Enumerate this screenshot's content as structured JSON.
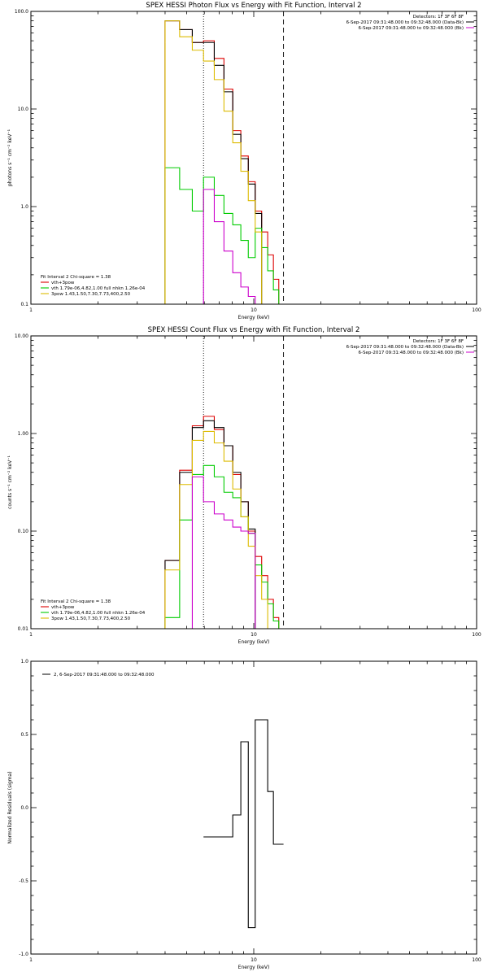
{
  "chart_data": [
    {
      "type": "line",
      "title": "SPEX HESSI Photon Flux vs Energy with Fit Function, Interval 2",
      "xlabel": "Energy (keV)",
      "ylabel": "photons s⁻¹ cm⁻² keV⁻¹",
      "xscale": "log",
      "yscale": "log",
      "xlim": [
        1,
        100
      ],
      "ylim": [
        0.1,
        100
      ],
      "xticks": [
        {
          "v": 1,
          "l": "1"
        },
        {
          "v": 10,
          "l": "10"
        },
        {
          "v": 100,
          "l": "100"
        }
      ],
      "yticks": [
        {
          "v": 0.1,
          "l": "0.1"
        },
        {
          "v": 1,
          "l": "1.0"
        },
        {
          "v": 10,
          "l": "10.0"
        },
        {
          "v": 100,
          "l": "100.0"
        }
      ],
      "vlines": [
        {
          "x": 5.95,
          "style": "dotted"
        },
        {
          "x": 13.6,
          "style": "dashed"
        }
      ],
      "info_lines": [
        {
          "text": "Detectors: 1F 3F 6F 8F",
          "color": ""
        },
        {
          "text": "6-Sep-2017 09:31:48.000 to 09:32:48.000 (Data-Bk)",
          "color": "#000000"
        },
        {
          "text": "6-Sep-2017 09:31:48.000 to 09:32:48.000 (Bk)",
          "color": "#cc00cc"
        }
      ],
      "legend_title": "Fit Interval 2   Chi-square = 1.38",
      "legend": [
        {
          "text": "vth+3pow",
          "color": "#dd0000"
        },
        {
          "text": "vth 1.79e-06,4.82,1.00  full nhkn 1.26e-04",
          "color": "#00cc00"
        },
        {
          "text": "3pow 1.43,1.50,7.30,7.73,400,2.50",
          "color": "#ddbb00"
        }
      ],
      "edges": [
        4.0,
        4.65,
        5.3,
        5.95,
        6.65,
        7.35,
        8.05,
        8.75,
        9.45,
        10.15,
        10.85,
        11.55,
        12.25,
        12.95,
        13.6,
        14.85,
        16.1,
        17.4,
        18.7,
        20.0
      ],
      "series": [
        {
          "name": "vth+3pow",
          "color": "#dd0000",
          "values": [
            80,
            65,
            48,
            50,
            33,
            16,
            6,
            3.3,
            1.8,
            0.9,
            0.55,
            0.32,
            0.18,
            0.1,
            0.1
          ]
        },
        {
          "name": "Data-Bk",
          "color": "#000000",
          "values": [
            80,
            65,
            48,
            48,
            28,
            15,
            5.5,
            3.1,
            1.7,
            0.85,
            null,
            null,
            null,
            null,
            null
          ]
        },
        {
          "name": "vth",
          "color": "#00cc00",
          "values": [
            2.5,
            1.5,
            0.9,
            2.0,
            1.3,
            0.85,
            0.65,
            0.45,
            0.3,
            0.6,
            0.38,
            0.22,
            0.14,
            0.1,
            0.1
          ]
        },
        {
          "name": "3pow",
          "color": "#ddbb00",
          "values": [
            80,
            55,
            40,
            31,
            20,
            9.5,
            4.5,
            2.3,
            1.15,
            0.55,
            0.1,
            null,
            null,
            null,
            null
          ]
        },
        {
          "name": "Bk",
          "color": "#cc00cc",
          "values": [
            null,
            null,
            null,
            1.5,
            0.7,
            0.35,
            0.21,
            0.15,
            0.12,
            0.1,
            null,
            null,
            null,
            null,
            null
          ]
        }
      ]
    },
    {
      "type": "line",
      "title": "SPEX HESSI Count Flux vs Energy with Fit Function, Interval 2",
      "xlabel": "Energy (keV)",
      "ylabel": "counts s⁻¹ cm⁻² keV⁻¹",
      "xscale": "log",
      "yscale": "log",
      "xlim": [
        1,
        100
      ],
      "ylim": [
        0.01,
        10
      ],
      "xticks": [
        {
          "v": 1,
          "l": "1"
        },
        {
          "v": 10,
          "l": "10"
        },
        {
          "v": 100,
          "l": "100"
        }
      ],
      "yticks": [
        {
          "v": 0.01,
          "l": "0.01"
        },
        {
          "v": 0.1,
          "l": "0.10"
        },
        {
          "v": 1,
          "l": "1.00"
        },
        {
          "v": 10,
          "l": "10.00"
        }
      ],
      "vlines": [
        {
          "x": 5.95,
          "style": "dotted"
        },
        {
          "x": 13.6,
          "style": "dashed"
        }
      ],
      "info_lines": [
        {
          "text": "Detectors: 1F 3F 6F 8F",
          "color": ""
        },
        {
          "text": "6-Sep-2017 09:31:48.000 to 09:32:48.000 (Data-Bk)",
          "color": "#000000"
        },
        {
          "text": "6-Sep-2017 09:31:48.000 to 09:32:48.000 (Bk)",
          "color": "#cc00cc"
        }
      ],
      "legend_title": "Fit Interval 2   Chi-square = 1.38",
      "legend": [
        {
          "text": "vth+3pow",
          "color": "#dd0000"
        },
        {
          "text": "vth 1.79e-06,4.82,1.00  full nhkn 1.26e-04",
          "color": "#00cc00"
        },
        {
          "text": "3pow 1.43,1.50,7.30,7.73,400,2.50",
          "color": "#ddbb00"
        }
      ],
      "edges": [
        4.0,
        4.65,
        5.3,
        5.95,
        6.65,
        7.35,
        8.05,
        8.75,
        9.45,
        10.15,
        10.85,
        11.55,
        12.25,
        12.95,
        13.6,
        14.85,
        16.1,
        17.4,
        18.7,
        20.0
      ],
      "series": [
        {
          "name": "vth+3pow",
          "color": "#dd0000",
          "values": [
            0.05,
            0.42,
            1.2,
            1.5,
            1.1,
            0.75,
            0.38,
            0.2,
            0.1,
            0.055,
            0.035,
            0.02,
            0.013
          ]
        },
        {
          "name": "Data-Bk",
          "color": "#000000",
          "values": [
            0.05,
            0.4,
            1.15,
            1.35,
            1.15,
            0.75,
            0.4,
            0.2,
            0.105,
            null,
            null,
            null,
            null
          ]
        },
        {
          "name": "vth",
          "color": "#00cc00",
          "values": [
            0.013,
            0.13,
            0.38,
            0.47,
            0.36,
            0.25,
            0.22,
            0.14,
            0.095,
            0.045,
            0.03,
            0.018,
            0.012
          ]
        },
        {
          "name": "3pow",
          "color": "#ddbb00",
          "values": [
            0.04,
            0.3,
            0.85,
            1.05,
            0.8,
            0.52,
            0.27,
            0.14,
            0.07,
            0.035,
            0.02,
            0.01,
            null
          ]
        },
        {
          "name": "Bk",
          "color": "#cc00cc",
          "values": [
            null,
            null,
            0.36,
            0.2,
            0.15,
            0.13,
            0.11,
            0.1,
            0.095,
            null,
            null,
            null,
            null
          ]
        }
      ],
      "edges_index_offset": 0,
      "edges_count": 14
    },
    {
      "type": "line",
      "title": "",
      "xlabel": "Energy (keV)",
      "ylabel": "Normalized Residuals (sigma)",
      "xscale": "log",
      "yscale": "linear",
      "xlim": [
        1,
        100
      ],
      "ylim": [
        -1,
        1
      ],
      "xticks": [
        {
          "v": 1,
          "l": "1"
        },
        {
          "v": 10,
          "l": "10"
        },
        {
          "v": 100,
          "l": "100"
        }
      ],
      "yticks": [
        {
          "v": -1,
          "l": "-1.0"
        },
        {
          "v": -0.5,
          "l": "-0.5"
        },
        {
          "v": 0,
          "l": "0.0"
        },
        {
          "v": 0.5,
          "l": "0.5"
        },
        {
          "v": 1,
          "l": "1.0"
        }
      ],
      "legend": [
        {
          "text": "2,  6-Sep-2017 09:31:48.000 to 09:32:48.000",
          "color": "#000000"
        }
      ],
      "edges": [
        5.95,
        7.35,
        8.05,
        8.75,
        9.45,
        10.15,
        10.85,
        11.55,
        12.25,
        12.95,
        13.6
      ],
      "series": [
        {
          "name": "",
          "color": "#000000",
          "values": [
            -0.2,
            -0.2,
            -0.05,
            0.45,
            -0.82,
            0.6,
            0.6,
            0.11,
            -0.25,
            -0.25
          ]
        }
      ]
    }
  ]
}
